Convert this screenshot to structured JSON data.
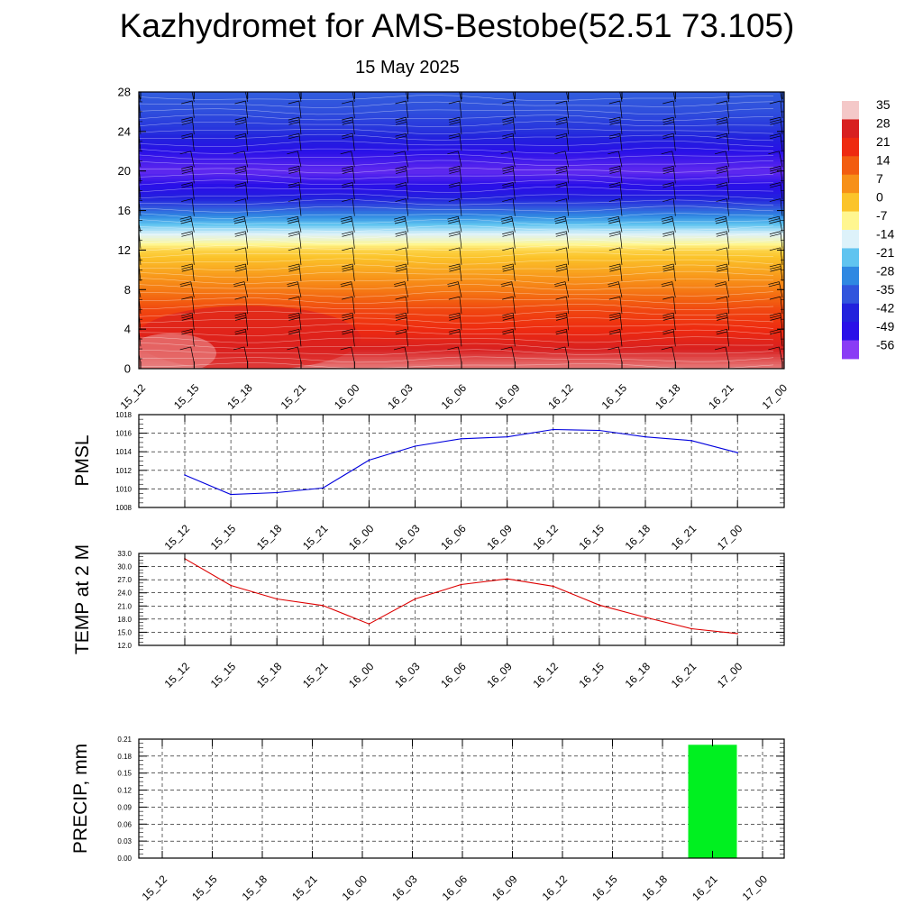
{
  "header": {
    "title": "Kazhydromet for AMS-Bestobe(52.51 73.105)",
    "subtitle": "15 May 2025"
  },
  "time_labels": [
    "15_12",
    "15_15",
    "15_18",
    "15_21",
    "16_00",
    "16_03",
    "16_06",
    "16_09",
    "16_12",
    "16_15",
    "16_18",
    "16_21",
    "17_00"
  ],
  "chart_data": [
    {
      "type": "heatmap",
      "title": "",
      "ylabel": "",
      "x": [
        "15_12",
        "15_15",
        "15_18",
        "15_21",
        "16_00",
        "16_03",
        "16_06",
        "16_09",
        "16_12",
        "16_15",
        "16_18",
        "16_21",
        "17_00"
      ],
      "y_ticks": [
        0,
        4,
        8,
        12,
        16,
        20,
        24,
        28
      ],
      "ylim": [
        0,
        28
      ],
      "color_scale": {
        "labels": [
          35,
          28,
          21,
          14,
          7,
          0,
          -7,
          -14,
          -21,
          -28,
          -35,
          -42,
          -49,
          -56
        ],
        "colors": [
          "#f4c8c8",
          "#d82020",
          "#ee2a10",
          "#f25d10",
          "#f79018",
          "#fbc42a",
          "#fff690",
          "#ddf2fa",
          "#60c4f0",
          "#2f88e2",
          "#3155dd",
          "#2222dd",
          "#2a10e8",
          "#8a3cf5"
        ]
      },
      "profile": [
        {
          "h": 0,
          "t": 32
        },
        {
          "h": 2,
          "t": 28
        },
        {
          "h": 4,
          "t": 21
        },
        {
          "h": 6,
          "t": 17
        },
        {
          "h": 8,
          "t": 10
        },
        {
          "h": 10,
          "t": 4
        },
        {
          "h": 12,
          "t": -2
        },
        {
          "h": 13,
          "t": -10
        },
        {
          "h": 14,
          "t": -16
        },
        {
          "h": 15,
          "t": -24
        },
        {
          "h": 16,
          "t": -32
        },
        {
          "h": 17,
          "t": -40
        },
        {
          "h": 18,
          "t": -47
        },
        {
          "h": 20,
          "t": -53
        },
        {
          "h": 22,
          "t": -49
        },
        {
          "h": 23,
          "t": -44
        },
        {
          "h": 24,
          "t": -40
        },
        {
          "h": 26,
          "t": -36
        },
        {
          "h": 28,
          "t": -34
        }
      ],
      "wind_barbs": true,
      "grid": false
    },
    {
      "type": "line",
      "ylabel": "PMSL",
      "x": [
        "15_12",
        "15_15",
        "15_18",
        "15_21",
        "16_00",
        "16_03",
        "16_06",
        "16_09",
        "16_12",
        "16_15",
        "16_18",
        "16_21",
        "17_00"
      ],
      "series": [
        {
          "values": [
            1011.5,
            1009.4,
            1009.6,
            1010.1,
            1013.1,
            1014.6,
            1015.4,
            1015.6,
            1016.4,
            1016.3,
            1015.6,
            1015.2,
            1013.9
          ],
          "color": "#0000dd"
        }
      ],
      "y_ticks": [
        1008,
        1010,
        1012,
        1014,
        1016,
        1018
      ],
      "ylim": [
        1008,
        1018
      ],
      "grid": true
    },
    {
      "type": "line",
      "ylabel": "TEMP at 2 M",
      "x": [
        "15_12",
        "15_15",
        "15_18",
        "15_21",
        "16_00",
        "16_03",
        "16_06",
        "16_09",
        "16_12",
        "16_15",
        "16_18",
        "16_21",
        "17_00"
      ],
      "series": [
        {
          "values": [
            31.8,
            25.7,
            22.6,
            21.1,
            16.9,
            22.6,
            25.9,
            27.2,
            25.5,
            21.2,
            18.4,
            15.8,
            14.7
          ],
          "color": "#dd0000"
        }
      ],
      "y_ticks": [
        "12.0",
        "15.0",
        "18.0",
        "21.0",
        "24.0",
        "27.0",
        "30.0",
        "33.0"
      ],
      "ylim": [
        12,
        33
      ],
      "grid": true
    },
    {
      "type": "bar",
      "ylabel": "PRECIP, mm",
      "categories": [
        "15_12",
        "15_15",
        "15_18",
        "15_21",
        "16_00",
        "16_03",
        "16_06",
        "16_09",
        "16_12",
        "16_15",
        "16_18",
        "16_21",
        "17_00"
      ],
      "values": [
        0,
        0,
        0,
        0,
        0,
        0,
        0,
        0,
        0,
        0,
        0,
        0.2,
        0
      ],
      "bar_color": "#00f020",
      "y_ticks": [
        "0.00",
        "0.03",
        "0.06",
        "0.09",
        "0.12",
        "0.15",
        "0.18",
        "0.21"
      ],
      "ylim": [
        0,
        0.21
      ],
      "grid": true
    }
  ]
}
